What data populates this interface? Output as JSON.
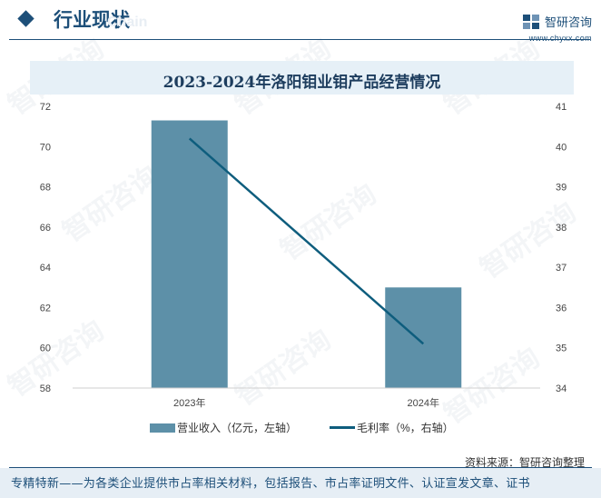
{
  "header": {
    "title": "行业现状",
    "ghost": "Chain",
    "logo_name": "智研咨询",
    "logo_url": "www.chyxx.com",
    "accent": "#1d4f79"
  },
  "watermark": "智研咨询",
  "chart_data": {
    "type": "bar",
    "title": "2023-2024年洛阳钼业钼产品经营情况",
    "categories": [
      "2023年",
      "2024年"
    ],
    "series": [
      {
        "name": "营业收入（亿元，左轴）",
        "type": "bar",
        "axis": "left",
        "color": "#5d90a8",
        "values": [
          71.3,
          63.0
        ]
      },
      {
        "name": "毛利率（%，右轴）",
        "type": "line",
        "axis": "right",
        "color": "#0e5d7d",
        "values": [
          40.2,
          35.1
        ]
      }
    ],
    "y_left": {
      "min": 58,
      "max": 72,
      "ticks": [
        58,
        60,
        62,
        64,
        66,
        68,
        70,
        72
      ]
    },
    "y_right": {
      "min": 34,
      "max": 41,
      "ticks": [
        34,
        35,
        36,
        37,
        38,
        39,
        40,
        41
      ]
    },
    "grid": false,
    "legend": "bottom"
  },
  "source": "资料来源：智研咨询整理",
  "footer": "专精特新——为各类企业提供市占率相关材料，包括报告、市占率证明文件、认证宣发文章、证书"
}
